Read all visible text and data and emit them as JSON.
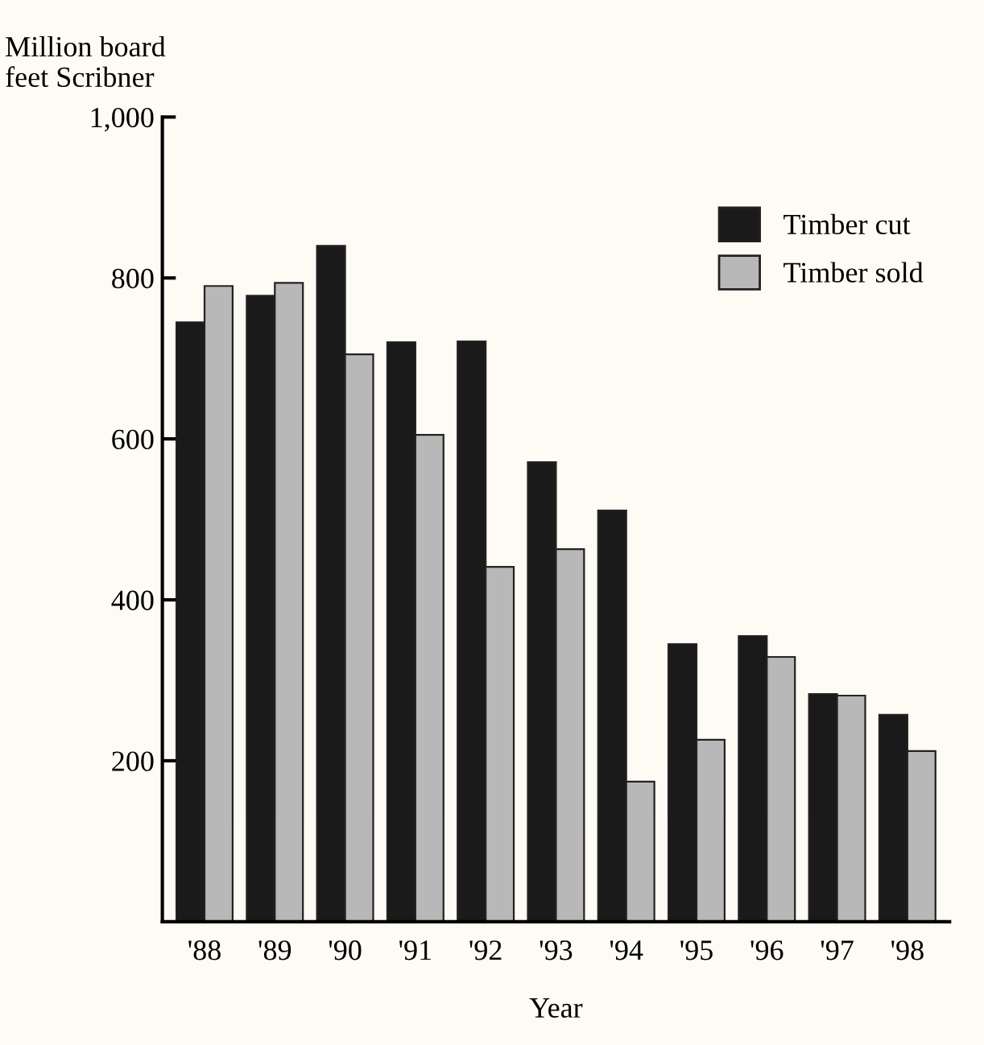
{
  "chart_data": {
    "type": "bar",
    "xlabel": "Year",
    "ylabel": "Million board\nfeet Scribner",
    "categories": [
      "'88",
      "'89",
      "'90",
      "'91",
      "'92",
      "'93",
      "'94",
      "'95",
      "'96",
      "'97",
      "'98"
    ],
    "series": [
      {
        "name": "Timber cut",
        "color": "#1a1a1a",
        "values": [
          745,
          778,
          840,
          720,
          721,
          571,
          511,
          345,
          355,
          283,
          257
        ]
      },
      {
        "name": "Timber sold",
        "color": "#b8b8b8",
        "values": [
          790,
          794,
          705,
          605,
          441,
          463,
          174,
          226,
          329,
          281,
          212
        ]
      }
    ],
    "ylim": [
      0,
      1000
    ],
    "yticks": [
      200,
      400,
      600,
      800,
      {
        "value": 1000,
        "label": "1,000"
      }
    ],
    "grid": false,
    "legend": "top right"
  }
}
